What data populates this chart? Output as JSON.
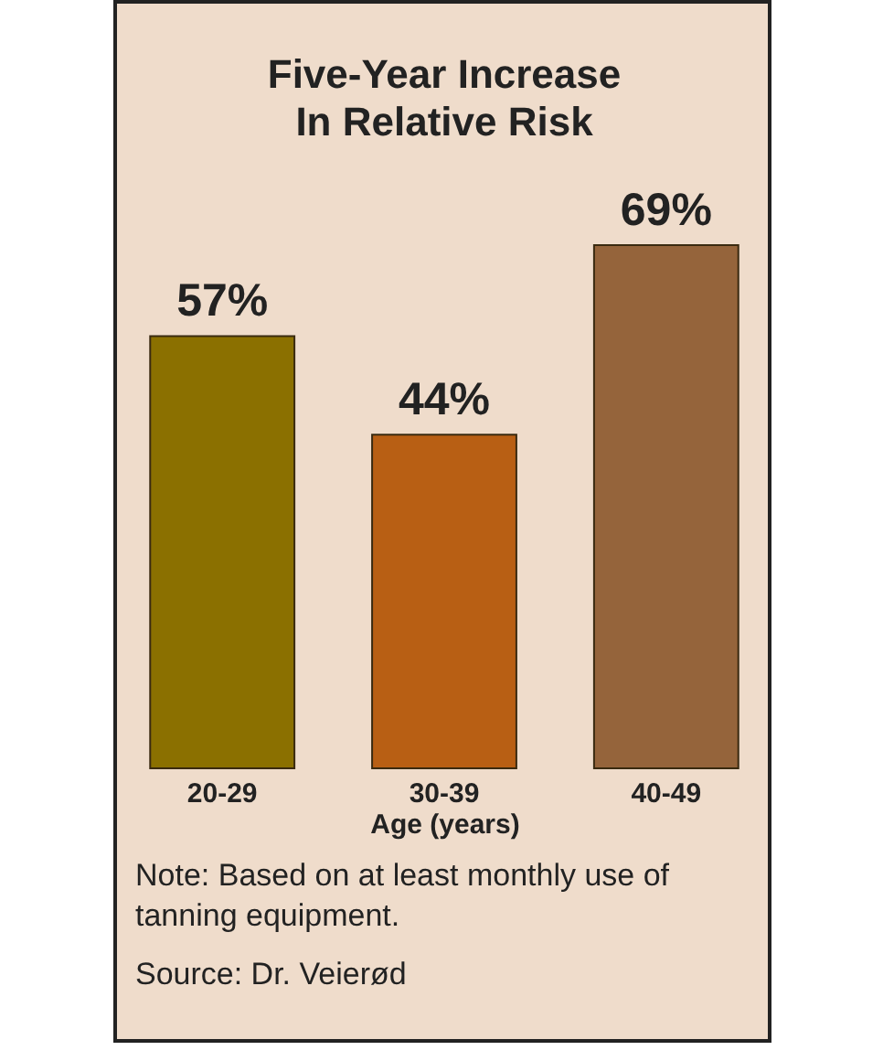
{
  "chart_data": {
    "type": "bar",
    "title": "Five-Year Increase In Relative Risk",
    "categories": [
      "20-29",
      "30-39",
      "40-49"
    ],
    "values": [
      57,
      44,
      69
    ],
    "colors": [
      "#8b7000",
      "#b85f14",
      "#95643b"
    ],
    "value_labels": [
      "57%",
      "44%",
      "69%"
    ],
    "xlabel": "Age (years)",
    "annotations": [
      "Note: Based on at least monthly use of tanning equipment.",
      "Source: Dr. Veierød"
    ]
  }
}
